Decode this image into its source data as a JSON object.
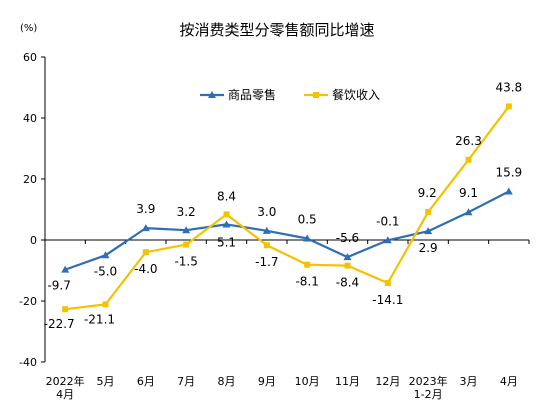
{
  "chart_data": {
    "type": "line",
    "title": "按消费类型分零售额同比增速",
    "unit_label": "(%)",
    "categories": [
      "2022年\n4月",
      "5月",
      "6月",
      "7月",
      "8月",
      "9月",
      "10月",
      "11月",
      "12月",
      "2023年\n1-2月",
      "3月",
      "4月"
    ],
    "ylim": [
      -40,
      60
    ],
    "yticks": [
      -40,
      -20,
      0,
      20,
      40,
      60
    ],
    "grid": false,
    "legend_position": "top-center",
    "series": [
      {
        "name": "商品零售",
        "color": "#2E6EB5",
        "marker": "triangle",
        "values": [
          -9.7,
          -5.0,
          3.9,
          3.2,
          5.1,
          3.0,
          0.5,
          -5.6,
          -0.1,
          2.9,
          9.1,
          15.9
        ],
        "labels": [
          "-9.7",
          "-5.0",
          "3.9",
          "3.2",
          "5.1",
          "3.0",
          "0.5",
          "-5.6",
          "-0.1",
          "2.9",
          "9.1",
          "15.9"
        ]
      },
      {
        "name": "餐饮收入",
        "color": "#F5C200",
        "marker": "square",
        "values": [
          -22.7,
          -21.1,
          -4.0,
          -1.5,
          8.4,
          -1.7,
          -8.1,
          -8.4,
          -14.1,
          9.2,
          26.3,
          43.8
        ],
        "labels": [
          "-22.7",
          "-21.1",
          "-4.0",
          "-1.5",
          "8.4",
          "-1.7",
          "-8.1",
          "-8.4",
          "-14.1",
          "9.2",
          "26.3",
          "43.8"
        ]
      }
    ]
  }
}
